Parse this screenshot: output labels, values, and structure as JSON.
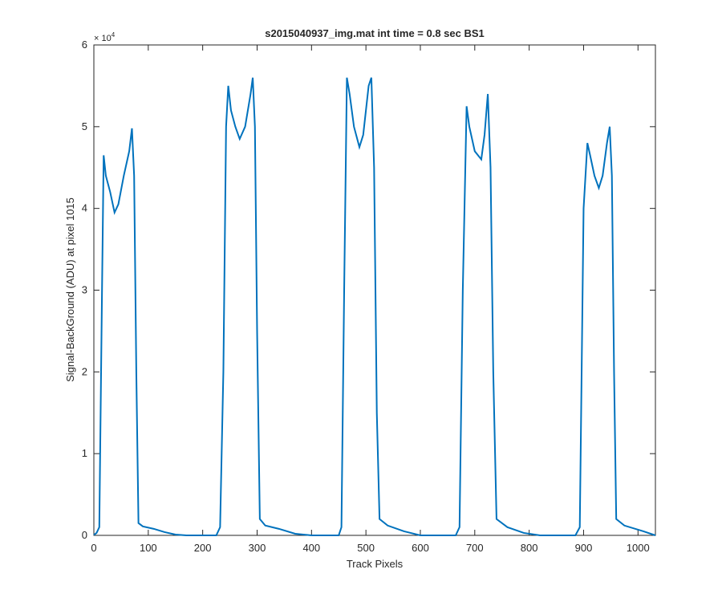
{
  "chart_data": {
    "type": "line",
    "title": "s2015040937_img.mat int time = 0.8 sec   BS1",
    "x_label": "Track Pixels",
    "y_label": "Signal-BackGround (ADU) at pixel 1015",
    "y_multiplier": {
      "base": "× 10",
      "exponent": "4"
    },
    "xlim": [
      0,
      1032
    ],
    "xticks": [
      0,
      100,
      200,
      300,
      400,
      500,
      600,
      700,
      800,
      900,
      1000
    ],
    "ylim": [
      0,
      60000
    ],
    "yticks": [
      {
        "value": 0,
        "label": "0"
      },
      {
        "value": 10000,
        "label": "1"
      },
      {
        "value": 20000,
        "label": "2"
      },
      {
        "value": 30000,
        "label": "3"
      },
      {
        "value": 40000,
        "label": "4"
      },
      {
        "value": 50000,
        "label": "5"
      },
      {
        "value": 60000,
        "label": "6"
      }
    ],
    "grid": false,
    "series": [
      {
        "color": "#0072bd",
        "x": [
          0,
          5,
          10,
          15,
          18,
          22,
          30,
          38,
          45,
          55,
          65,
          70,
          74,
          78,
          82,
          90,
          110,
          130,
          150,
          170,
          225,
          232,
          238,
          243,
          247,
          252,
          260,
          268,
          278,
          288,
          292,
          296,
          300,
          305,
          315,
          340,
          370,
          400,
          450,
          455,
          460,
          465,
          470,
          478,
          488,
          495,
          505,
          510,
          515,
          520,
          525,
          540,
          570,
          600,
          665,
          672,
          678,
          685,
          690,
          700,
          712,
          718,
          724,
          729,
          734,
          740,
          760,
          790,
          820,
          885,
          893,
          900,
          907,
          912,
          920,
          928,
          935,
          943,
          948,
          952,
          956,
          960,
          975,
          1010,
          1032
        ],
        "values": [
          50,
          300,
          1000,
          30000,
          46500,
          44000,
          42000,
          39500,
          40500,
          44000,
          47000,
          49800,
          44000,
          20000,
          1500,
          1100,
          800,
          400,
          100,
          0,
          0,
          1000,
          20000,
          50000,
          55000,
          52000,
          50000,
          48500,
          50000,
          54000,
          56000,
          50000,
          25000,
          2000,
          1200,
          800,
          200,
          0,
          0,
          1000,
          30000,
          56000,
          54000,
          50000,
          47500,
          49000,
          55000,
          56000,
          45000,
          15000,
          2000,
          1200,
          500,
          0,
          0,
          1000,
          30000,
          52500,
          50000,
          47000,
          46000,
          49000,
          54000,
          45000,
          20000,
          2000,
          1000,
          300,
          0,
          0,
          1000,
          40000,
          48000,
          46500,
          44000,
          42500,
          44000,
          48000,
          50000,
          44000,
          20000,
          2000,
          1200,
          500,
          0
        ]
      }
    ]
  }
}
